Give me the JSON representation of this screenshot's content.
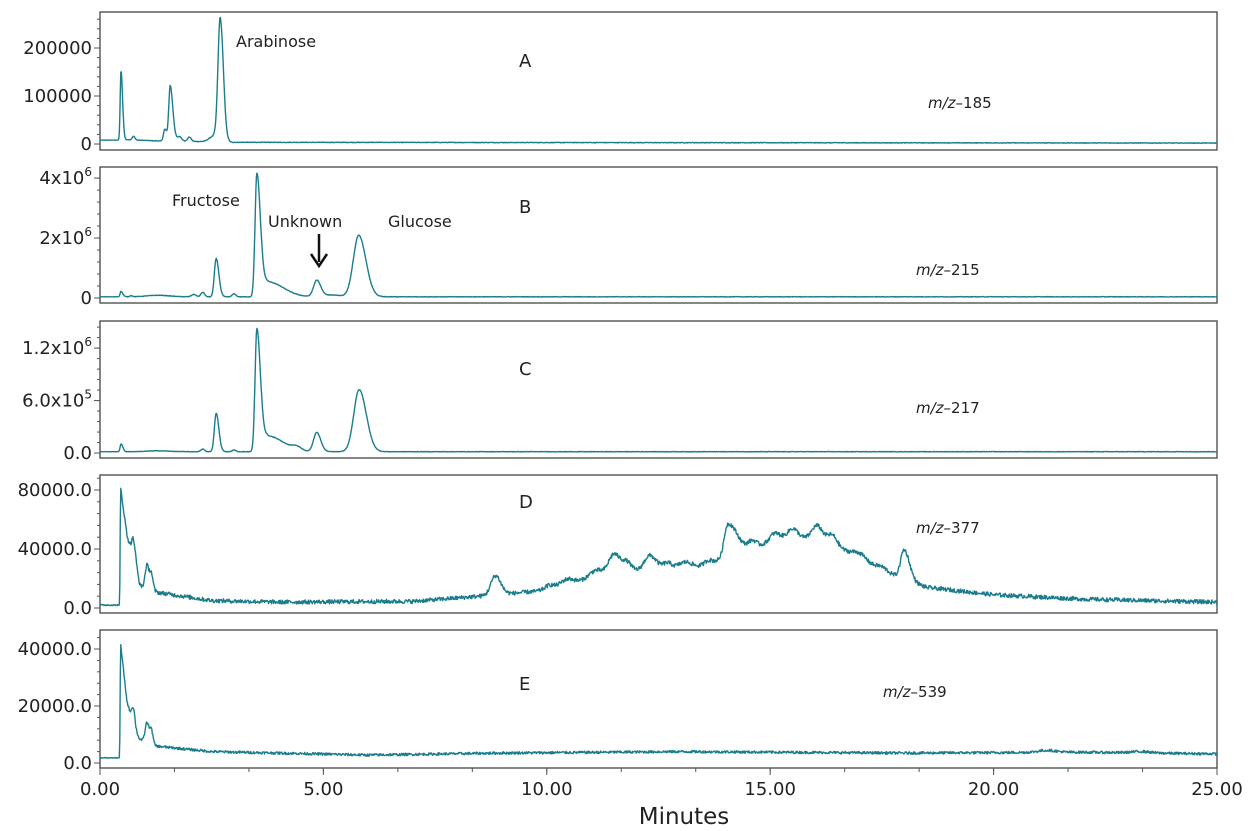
{
  "chart_data": {
    "type": "line",
    "line_color": "#1b7d8c",
    "xlabel": "Minutes",
    "xlim": [
      0,
      25
    ],
    "x_ticks": [
      0,
      5,
      10,
      15,
      20,
      25
    ],
    "x_tick_labels": [
      "0.00",
      "5.00",
      "10.00",
      "15.00",
      "20.00",
      "25.00"
    ],
    "panels": [
      {
        "letter": "A",
        "mz_prefix": "m/z",
        "mz_value": "–185",
        "ylim": [
          -12500,
          275000
        ],
        "y_ticks": [
          0,
          100000,
          200000
        ],
        "y_tick_labels": [
          "0",
          "100000",
          "200000"
        ],
        "baseline": [
          [
            0,
            8000
          ],
          [
            0.45,
            8000
          ],
          [
            0.6,
            9000
          ],
          [
            1.4,
            6000
          ],
          [
            2.4,
            5000
          ],
          [
            3.0,
            3500
          ],
          [
            25,
            2000
          ]
        ],
        "peaks": [
          [
            0.47,
            145000,
            0.018,
            0.035
          ],
          [
            0.75,
            8000,
            0.03,
            0.03
          ],
          [
            1.45,
            25000,
            0.03,
            0.05
          ],
          [
            1.57,
            115000,
            0.03,
            0.06
          ],
          [
            1.78,
            10000,
            0.05,
            0.05
          ],
          [
            2.0,
            9000,
            0.04,
            0.04
          ],
          [
            2.55,
            12000,
            0.1,
            0.1
          ],
          [
            2.69,
            255000,
            0.05,
            0.07
          ]
        ],
        "noise": 600,
        "annotations": [
          {
            "text": "Arabinose"
          }
        ]
      },
      {
        "letter": "B",
        "mz_prefix": "m/z",
        "mz_value": "–215",
        "ylim": [
          -167000,
          4370000
        ],
        "y_ticks": [
          0,
          2000000,
          4000000
        ],
        "y_tick_labels": [
          [
            "0",
            ""
          ],
          [
            "2x10",
            "6"
          ],
          [
            "4x10",
            "6"
          ]
        ],
        "baseline": [
          [
            0,
            40000
          ],
          [
            25,
            40000
          ]
        ],
        "peaks": [
          [
            0.47,
            180000,
            0.02,
            0.04
          ],
          [
            0.7,
            40000,
            0.03,
            0.03
          ],
          [
            1.3,
            50000,
            0.25,
            0.25
          ],
          [
            2.1,
            80000,
            0.05,
            0.05
          ],
          [
            2.3,
            150000,
            0.04,
            0.04
          ],
          [
            2.6,
            1280000,
            0.04,
            0.06
          ],
          [
            3.0,
            100000,
            0.04,
            0.04
          ],
          [
            3.51,
            4100000,
            0.04,
            0.08
          ],
          [
            3.75,
            500000,
            0.1,
            0.35
          ],
          [
            4.85,
            540000,
            0.07,
            0.09
          ],
          [
            5.2,
            60000,
            0.2,
            0.2
          ],
          [
            5.79,
            2050000,
            0.12,
            0.16
          ]
        ],
        "noise": 8000,
        "annotations": [
          {
            "text": "Fructose"
          },
          {
            "text": "Unknown"
          },
          {
            "text": "Glucose"
          }
        ]
      },
      {
        "letter": "C",
        "mz_prefix": "m/z",
        "mz_value": "–217",
        "ylim": [
          -57000,
          1510000
        ],
        "y_ticks": [
          0,
          600000,
          1200000
        ],
        "y_tick_labels": [
          [
            "0.0",
            ""
          ],
          [
            "6.0x10",
            "5"
          ],
          [
            "1.2x10",
            "6"
          ]
        ],
        "baseline": [
          [
            0,
            15000
          ],
          [
            25,
            15000
          ]
        ],
        "peaks": [
          [
            0.47,
            90000,
            0.02,
            0.04
          ],
          [
            1.3,
            10000,
            0.25,
            0.25
          ],
          [
            2.3,
            30000,
            0.04,
            0.04
          ],
          [
            2.6,
            440000,
            0.04,
            0.06
          ],
          [
            3.0,
            20000,
            0.04,
            0.04
          ],
          [
            3.51,
            1400000,
            0.04,
            0.08
          ],
          [
            3.75,
            180000,
            0.1,
            0.35
          ],
          [
            4.4,
            40000,
            0.1,
            0.1
          ],
          [
            4.85,
            220000,
            0.07,
            0.09
          ],
          [
            5.8,
            710000,
            0.12,
            0.16
          ]
        ],
        "noise": 2500,
        "annotations": []
      },
      {
        "letter": "D",
        "mz_prefix": "m/z",
        "mz_value": "–377",
        "ylim": [
          -3390,
          90170
        ],
        "y_ticks": [
          0,
          40000,
          80000
        ],
        "y_tick_labels": [
          "0.0",
          "40000.0",
          "80000.0"
        ],
        "baseline": [
          [
            0,
            2000
          ],
          [
            0.44,
            2000
          ],
          [
            0.46,
            82000
          ],
          [
            0.6,
            50000
          ],
          [
            0.9,
            15000
          ],
          [
            1.2,
            11000
          ],
          [
            2.5,
            5000
          ],
          [
            4,
            4000
          ],
          [
            7,
            4500
          ],
          [
            8.5,
            8000
          ],
          [
            10,
            12000
          ],
          [
            11,
            20000
          ],
          [
            12,
            25000
          ],
          [
            13.5,
            28000
          ],
          [
            14.3,
            38000
          ],
          [
            15.5,
            48000
          ],
          [
            16.3,
            45000
          ],
          [
            17.5,
            25000
          ],
          [
            18.5,
            14000
          ],
          [
            20,
            9000
          ],
          [
            22,
            6000
          ],
          [
            25,
            4000
          ]
        ],
        "peaks": [
          [
            0.75,
            14000,
            0.04,
            0.05
          ],
          [
            1.05,
            16000,
            0.04,
            0.06
          ],
          [
            1.15,
            9000,
            0.03,
            0.04
          ],
          [
            8.85,
            13000,
            0.1,
            0.12
          ],
          [
            10.05,
            3000,
            0.1,
            0.1
          ],
          [
            10.45,
            4000,
            0.15,
            0.15
          ],
          [
            11.1,
            5000,
            0.15,
            0.15
          ],
          [
            11.5,
            14000,
            0.12,
            0.15
          ],
          [
            11.8,
            6000,
            0.1,
            0.1
          ],
          [
            12.3,
            10000,
            0.12,
            0.15
          ],
          [
            12.7,
            4000,
            0.1,
            0.1
          ],
          [
            13.1,
            4000,
            0.15,
            0.15
          ],
          [
            13.6,
            3000,
            0.1,
            0.1
          ],
          [
            14.05,
            22000,
            0.08,
            0.2
          ],
          [
            14.6,
            5000,
            0.1,
            0.1
          ],
          [
            15.1,
            6000,
            0.12,
            0.12
          ],
          [
            15.5,
            6000,
            0.12,
            0.12
          ],
          [
            16.05,
            10000,
            0.12,
            0.12
          ],
          [
            16.4,
            6000,
            0.1,
            0.1
          ],
          [
            17.0,
            4000,
            0.15,
            0.15
          ],
          [
            17.5,
            3000,
            0.12,
            0.12
          ],
          [
            18.0,
            20000,
            0.08,
            0.12
          ]
        ],
        "noise": 1400,
        "annotations": []
      },
      {
        "letter": "E",
        "mz_prefix": "m/z",
        "mz_value": "–539",
        "ylim": [
          -1750,
          46670
        ],
        "y_ticks": [
          0,
          20000,
          40000
        ],
        "y_tick_labels": [
          "0.0",
          "20000.0",
          "40000.0"
        ],
        "baseline": [
          [
            0,
            1800
          ],
          [
            0.44,
            1800
          ],
          [
            0.46,
            42000
          ],
          [
            0.6,
            22000
          ],
          [
            0.8,
            9000
          ],
          [
            1.2,
            6000
          ],
          [
            2.5,
            4000
          ],
          [
            6,
            2800
          ],
          [
            9,
            3500
          ],
          [
            13,
            4000
          ],
          [
            18,
            3500
          ],
          [
            22,
            3800
          ],
          [
            25,
            3200
          ]
        ],
        "peaks": [
          [
            0.75,
            7000,
            0.04,
            0.05
          ],
          [
            1.05,
            7000,
            0.04,
            0.06
          ],
          [
            1.15,
            4000,
            0.03,
            0.04
          ],
          [
            21.2,
            700,
            0.2,
            0.2
          ],
          [
            23.3,
            500,
            0.2,
            0.2
          ]
        ],
        "noise": 450,
        "annotations": []
      }
    ]
  }
}
